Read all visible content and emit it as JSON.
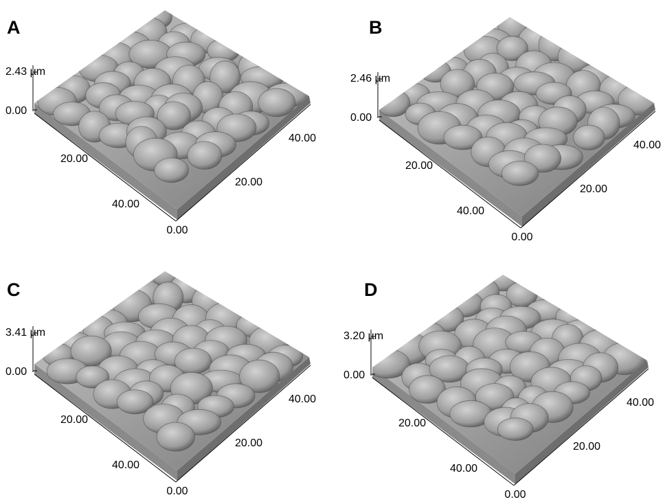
{
  "panels": [
    {
      "label": "A",
      "z_top": "2.43 µm",
      "z_bottom": "0.00",
      "left_ticks": [
        "20.00",
        "40.00"
      ],
      "right_ticks": [
        "20.00",
        "40.00"
      ],
      "origin": "0.00"
    },
    {
      "label": "B",
      "z_top": "2.46 µm",
      "z_bottom": "0.00",
      "left_ticks": [
        "20.00",
        "40.00"
      ],
      "right_ticks": [
        "20.00",
        "40.00"
      ],
      "origin": "0.00"
    },
    {
      "label": "C",
      "z_top": "3.41 µm",
      "z_bottom": "0.00",
      "left_ticks": [
        "20.00",
        "40.00"
      ],
      "right_ticks": [
        "20.00",
        "40.00"
      ],
      "origin": "0.00"
    },
    {
      "label": "D",
      "z_top": "3.20 µm",
      "z_bottom": "0.00",
      "left_ticks": [
        "20.00",
        "40.00"
      ],
      "right_ticks": [
        "20.00",
        "40.00"
      ],
      "origin": "0.00"
    }
  ]
}
